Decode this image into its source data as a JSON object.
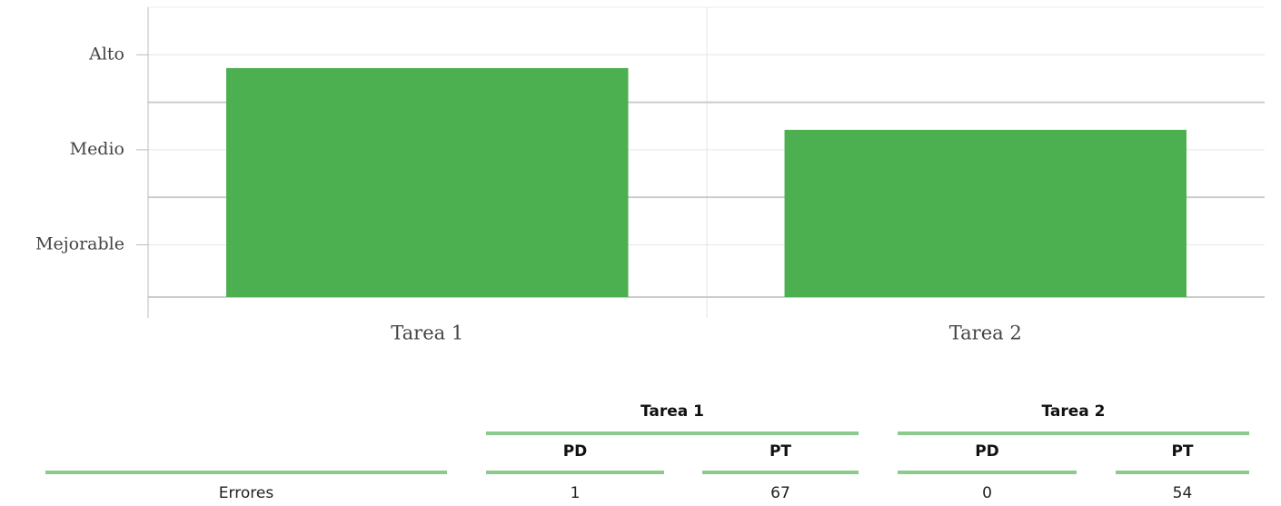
{
  "chart_data": {
    "type": "bar",
    "categories": [
      "Tarea 1",
      "Tarea 2"
    ],
    "values": [
      2.86,
      2.21
    ],
    "color": "#4caf50",
    "ylim": [
      0.45,
      3.5
    ],
    "yticks": [
      {
        "value": 1,
        "label": "Mejorable"
      },
      {
        "value": 2,
        "label": "Medio"
      },
      {
        "value": 3,
        "label": "Alto"
      }
    ],
    "minor_yticks": [
      1.5,
      2.5
    ],
    "grid": true
  },
  "table": {
    "groups": [
      "Tarea 1",
      "Tarea 2"
    ],
    "subheaders": [
      "PD",
      "PT",
      "PD",
      "PT"
    ],
    "rows": [
      [
        "Errores",
        "1",
        "67",
        "0",
        "54"
      ]
    ]
  }
}
